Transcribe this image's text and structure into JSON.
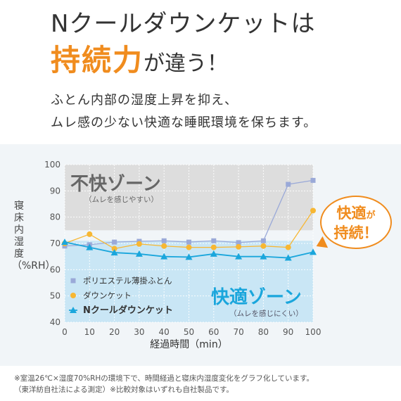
{
  "headline": {
    "line1": "Nクールダウンケット",
    "line1_suffix": "は",
    "line2_emphasis": "持続力",
    "line2_rest": "が違う！"
  },
  "subcopy": [
    "ふとん内部の湿度上昇を抑え、",
    "ムレ感の少ない快適な睡眠環境を保ちます。"
  ],
  "bubble": {
    "line1_a": "快適",
    "line1_b": "が",
    "line2": "持続！"
  },
  "footnotes": [
    "※室温26℃×湿度70%RHの環境下で、時間経過と寝床内湿度変化をグラフ化しています。",
    "（東洋紡自社法による測定）※比較対象はいずれも自社製品です。"
  ],
  "colors": {
    "accent": "#f08c1e",
    "discomfort_zone": "#dddddd",
    "comfort_zone": "#c9e6f5",
    "comfort_text": "#1aa6dc"
  },
  "chart_data": {
    "type": "line",
    "xlabel": "経過時間（min）",
    "ylabel": "寝床内湿度（%RH）",
    "xlim": [
      0,
      100
    ],
    "ylim": [
      40,
      100
    ],
    "x_ticks": [
      0,
      10,
      20,
      30,
      40,
      50,
      60,
      70,
      80,
      90,
      100
    ],
    "y_ticks": [
      40,
      50,
      60,
      70,
      80,
      90,
      100
    ],
    "grid": true,
    "legend_position": "bottom-left",
    "zones": [
      {
        "title": "不快ゾーン",
        "subtitle": "（ムレを感じやすい）",
        "range": [
          75,
          100
        ],
        "color": "#dddddd",
        "text_color": "#666666"
      },
      {
        "title": "快適ゾーン",
        "subtitle": "（ムレを感じにくい）",
        "range": [
          40,
          71
        ],
        "color": "#c9e6f5",
        "text_color": "#1aa6dc"
      }
    ],
    "series": [
      {
        "name": "ポリエステル薄掛ふとん",
        "marker": "square",
        "color": "#9aa9d8",
        "x": [
          0,
          10,
          20,
          30,
          40,
          50,
          60,
          70,
          80,
          90,
          100
        ],
        "y": [
          69,
          69.5,
          70.5,
          70.8,
          71,
          70.5,
          71,
          70.3,
          71,
          92.5,
          94
        ]
      },
      {
        "name": "ダウンケット",
        "marker": "circle",
        "color": "#f7b733",
        "x": [
          0,
          10,
          20,
          30,
          40,
          50,
          60,
          70,
          80,
          90,
          100
        ],
        "y": [
          70,
          73.5,
          68,
          69.8,
          69,
          68.5,
          68.5,
          68.7,
          69,
          68.5,
          82.5
        ]
      },
      {
        "name": "Nクールダウンケット",
        "marker": "triangle",
        "color": "#1aa6dc",
        "x": [
          0,
          10,
          20,
          30,
          40,
          50,
          60,
          70,
          80,
          90,
          100
        ],
        "y": [
          70.5,
          68.5,
          66.5,
          66,
          65,
          64.8,
          66,
          65,
          65,
          64.5,
          66.7
        ]
      }
    ]
  }
}
